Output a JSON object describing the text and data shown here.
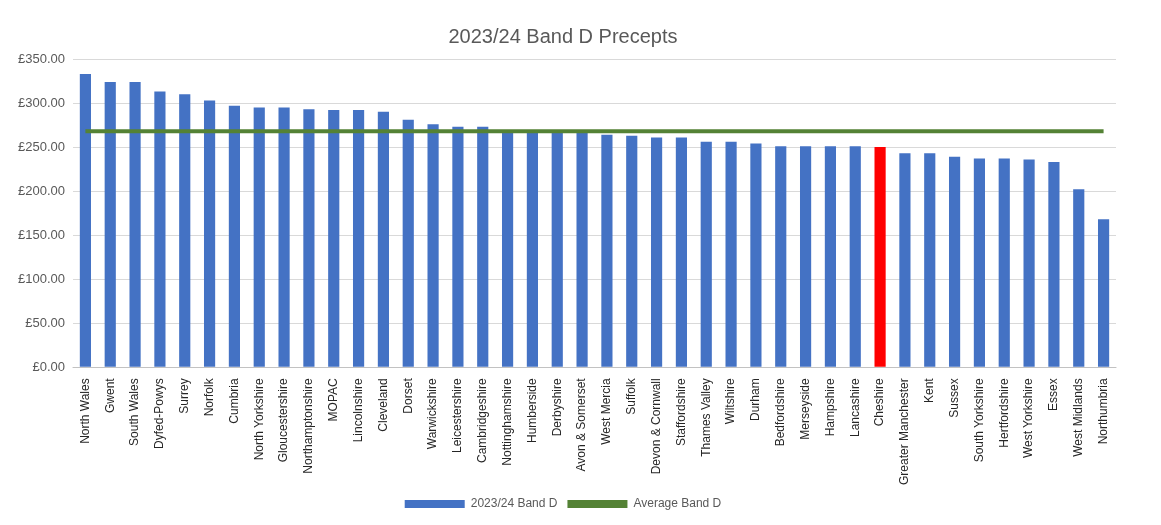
{
  "chart_data": {
    "type": "bar",
    "title": "2023/24 Band D Precepts",
    "categories": [
      "North Wales",
      "Gwent",
      "South Wales",
      "Dyfed-Powys",
      "Surrey",
      "Norfolk",
      "Cumbria",
      "North Yorkshire",
      "Gloucestershire",
      "Northamptonshire",
      "MOPAC",
      "Lincolnshire",
      "Cleveland",
      "Dorset",
      "Warwickshire",
      "Leicestershire",
      "Cambridgeshire",
      "Nottinghamshire",
      "Humberside",
      "Derbyshire",
      "Avon & Somerset",
      "West Mercia",
      "Suffolk",
      "Devon & Cornwall",
      "Staffordshire",
      "Thames Valley",
      "Wiltshire",
      "Durham",
      "Bedfordshire",
      "Merseyside",
      "Hampshire",
      "Lancashire",
      "Cheshire",
      "Greater Manchester",
      "Kent",
      "Sussex",
      "South Yorkshire",
      "Hertfordshire",
      "West Yorkshire",
      "Essex",
      "West Midlands",
      "Northumbria"
    ],
    "series": [
      {
        "name": "2023/24 Band D",
        "color": "#4472c4",
        "colors": [
          "#4472c4",
          "#4472c4",
          "#4472c4",
          "#4472c4",
          "#4472c4",
          "#4472c4",
          "#4472c4",
          "#4472c4",
          "#4472c4",
          "#4472c4",
          "#4472c4",
          "#4472c4",
          "#4472c4",
          "#4472c4",
          "#4472c4",
          "#4472c4",
          "#4472c4",
          "#4472c4",
          "#4472c4",
          "#4472c4",
          "#4472c4",
          "#4472c4",
          "#4472c4",
          "#4472c4",
          "#4472c4",
          "#4472c4",
          "#4472c4",
          "#4472c4",
          "#4472c4",
          "#4472c4",
          "#4472c4",
          "#4472c4",
          "#ff0000",
          "#4472c4",
          "#4472c4",
          "#4472c4",
          "#4472c4",
          "#4472c4",
          "#4472c4",
          "#4472c4",
          "#4472c4",
          "#4472c4"
        ],
        "values": [
          333,
          324,
          324,
          313,
          310,
          303,
          297,
          295,
          295,
          293,
          292,
          292,
          290,
          281,
          276,
          273,
          273,
          267,
          267,
          266,
          267,
          264,
          263,
          261,
          261,
          256,
          256,
          254,
          251,
          251,
          251,
          251,
          250,
          243,
          243,
          239,
          237,
          237,
          236,
          233,
          202,
          168
        ]
      },
      {
        "name": "Average Band D",
        "type": "line",
        "color": "#548235",
        "values": [
          268,
          268,
          268,
          268,
          268,
          268,
          268,
          268,
          268,
          268,
          268,
          268,
          268,
          268,
          268,
          268,
          268,
          268,
          268,
          268,
          268,
          268,
          268,
          268,
          268,
          268,
          268,
          268,
          268,
          268,
          268,
          268,
          268,
          268,
          268,
          268,
          268,
          268,
          268,
          268,
          268,
          268
        ]
      }
    ],
    "ylim": [
      0,
      350
    ],
    "yticks": [
      {
        "value": 0,
        "label": "£0.00"
      },
      {
        "value": 50,
        "label": "£50.00"
      },
      {
        "value": 100,
        "label": "£100.00"
      },
      {
        "value": 150,
        "label": "£150.00"
      },
      {
        "value": 200,
        "label": "£200.00"
      },
      {
        "value": 250,
        "label": "£250.00"
      },
      {
        "value": 300,
        "label": "£300.00"
      },
      {
        "value": 350,
        "label": "£350.00"
      }
    ],
    "grid": "y",
    "legend": "bottom",
    "marker": "none"
  }
}
